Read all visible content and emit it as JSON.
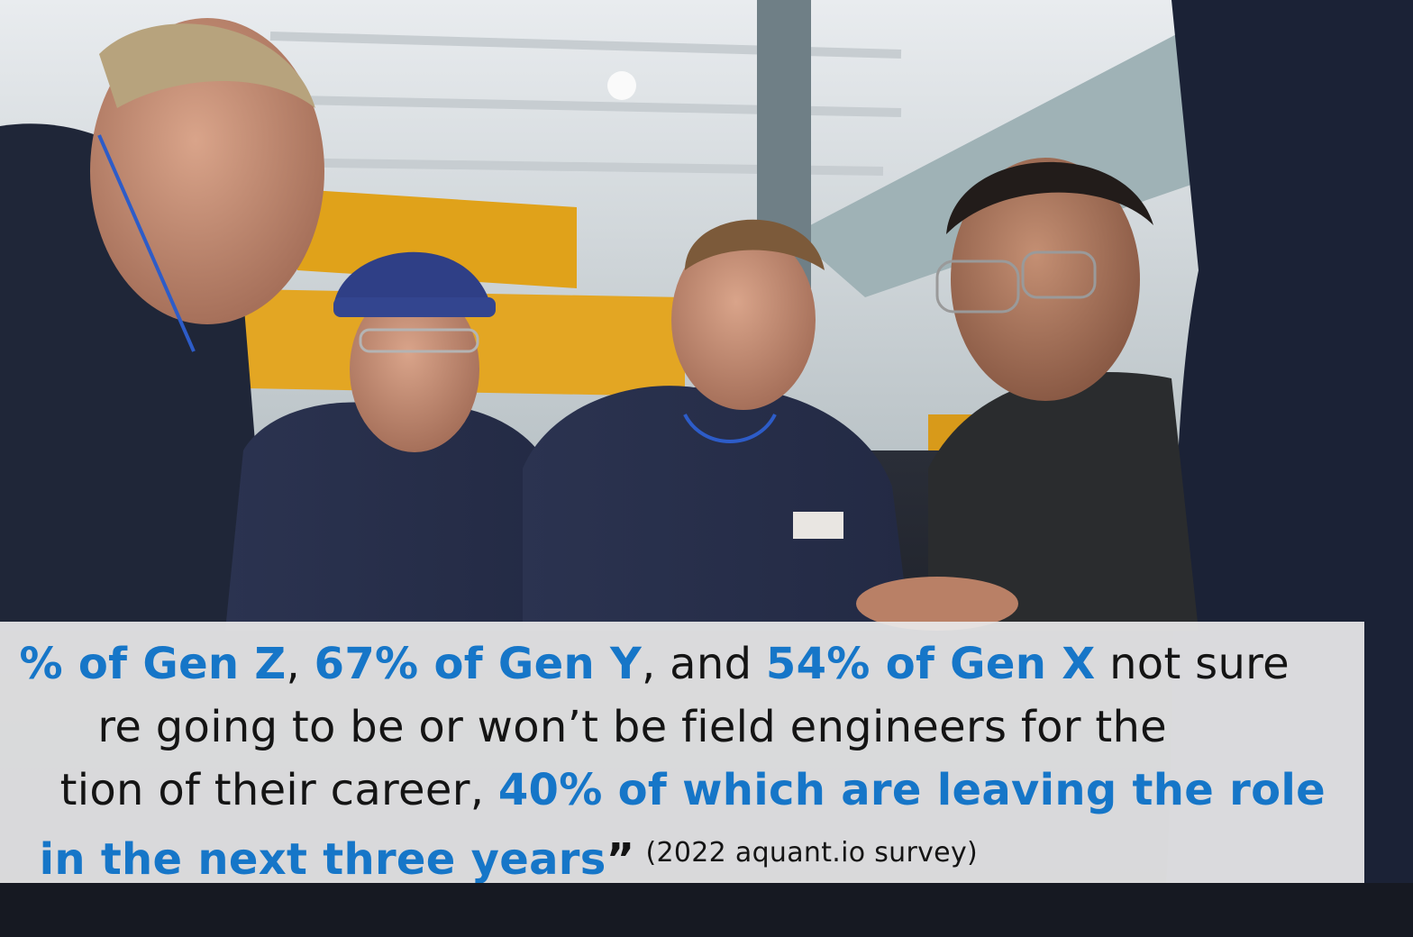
{
  "photo": {
    "subject": "workers-group-icon"
  },
  "quote": {
    "line1": {
      "a": "% of Gen Z",
      "b": ", ",
      "c": "67% of Gen Y",
      "d": ", and ",
      "e": "54% of Gen X",
      "f": " not sure"
    },
    "line2": {
      "a": "re going to be or won’t be field engineers for the"
    },
    "line3": {
      "a": "tion of their career, ",
      "b": "40% of which are leaving the role"
    },
    "line4": {
      "a": "in the next three years",
      "b": "”"
    },
    "citation": "(2022 aquant.io survey)"
  },
  "colors": {
    "highlight": "#1676c8",
    "body_text": "#141414",
    "panel": "#e8e8ea"
  }
}
